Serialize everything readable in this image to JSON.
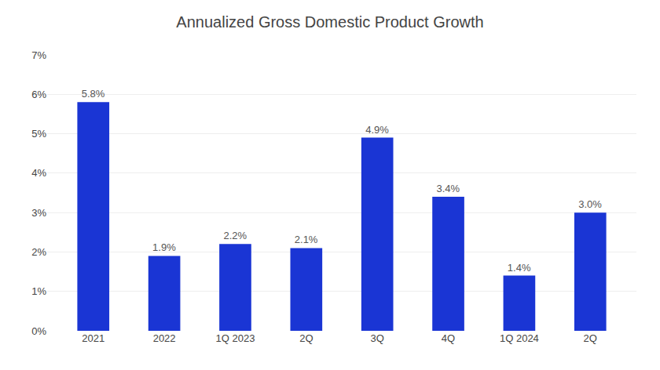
{
  "chart_data": {
    "type": "bar",
    "title": "Annualized Gross Domestic Product Growth",
    "categories": [
      "2021",
      "2022",
      "1Q 2023",
      "2Q",
      "3Q",
      "4Q",
      "1Q 2024",
      "2Q"
    ],
    "values": [
      5.8,
      1.9,
      2.2,
      2.1,
      4.9,
      3.4,
      1.4,
      3.0
    ],
    "value_labels": [
      "5.8%",
      "1.9%",
      "2.2%",
      "2.1%",
      "4.9%",
      "3.4%",
      "1.4%",
      "3.0%"
    ],
    "data_labels": true,
    "color": "#1a35d4",
    "ylim": [
      0,
      7
    ],
    "yticks": [
      {
        "value": 0,
        "label": "0%"
      },
      {
        "value": 1,
        "label": "1%"
      },
      {
        "value": 2,
        "label": "2%"
      },
      {
        "value": 3,
        "label": "3%"
      },
      {
        "value": 4,
        "label": "4%"
      },
      {
        "value": 5,
        "label": "5%"
      },
      {
        "value": 6,
        "label": "6%"
      },
      {
        "value": 7,
        "label": "7%"
      }
    ],
    "grid": true
  }
}
